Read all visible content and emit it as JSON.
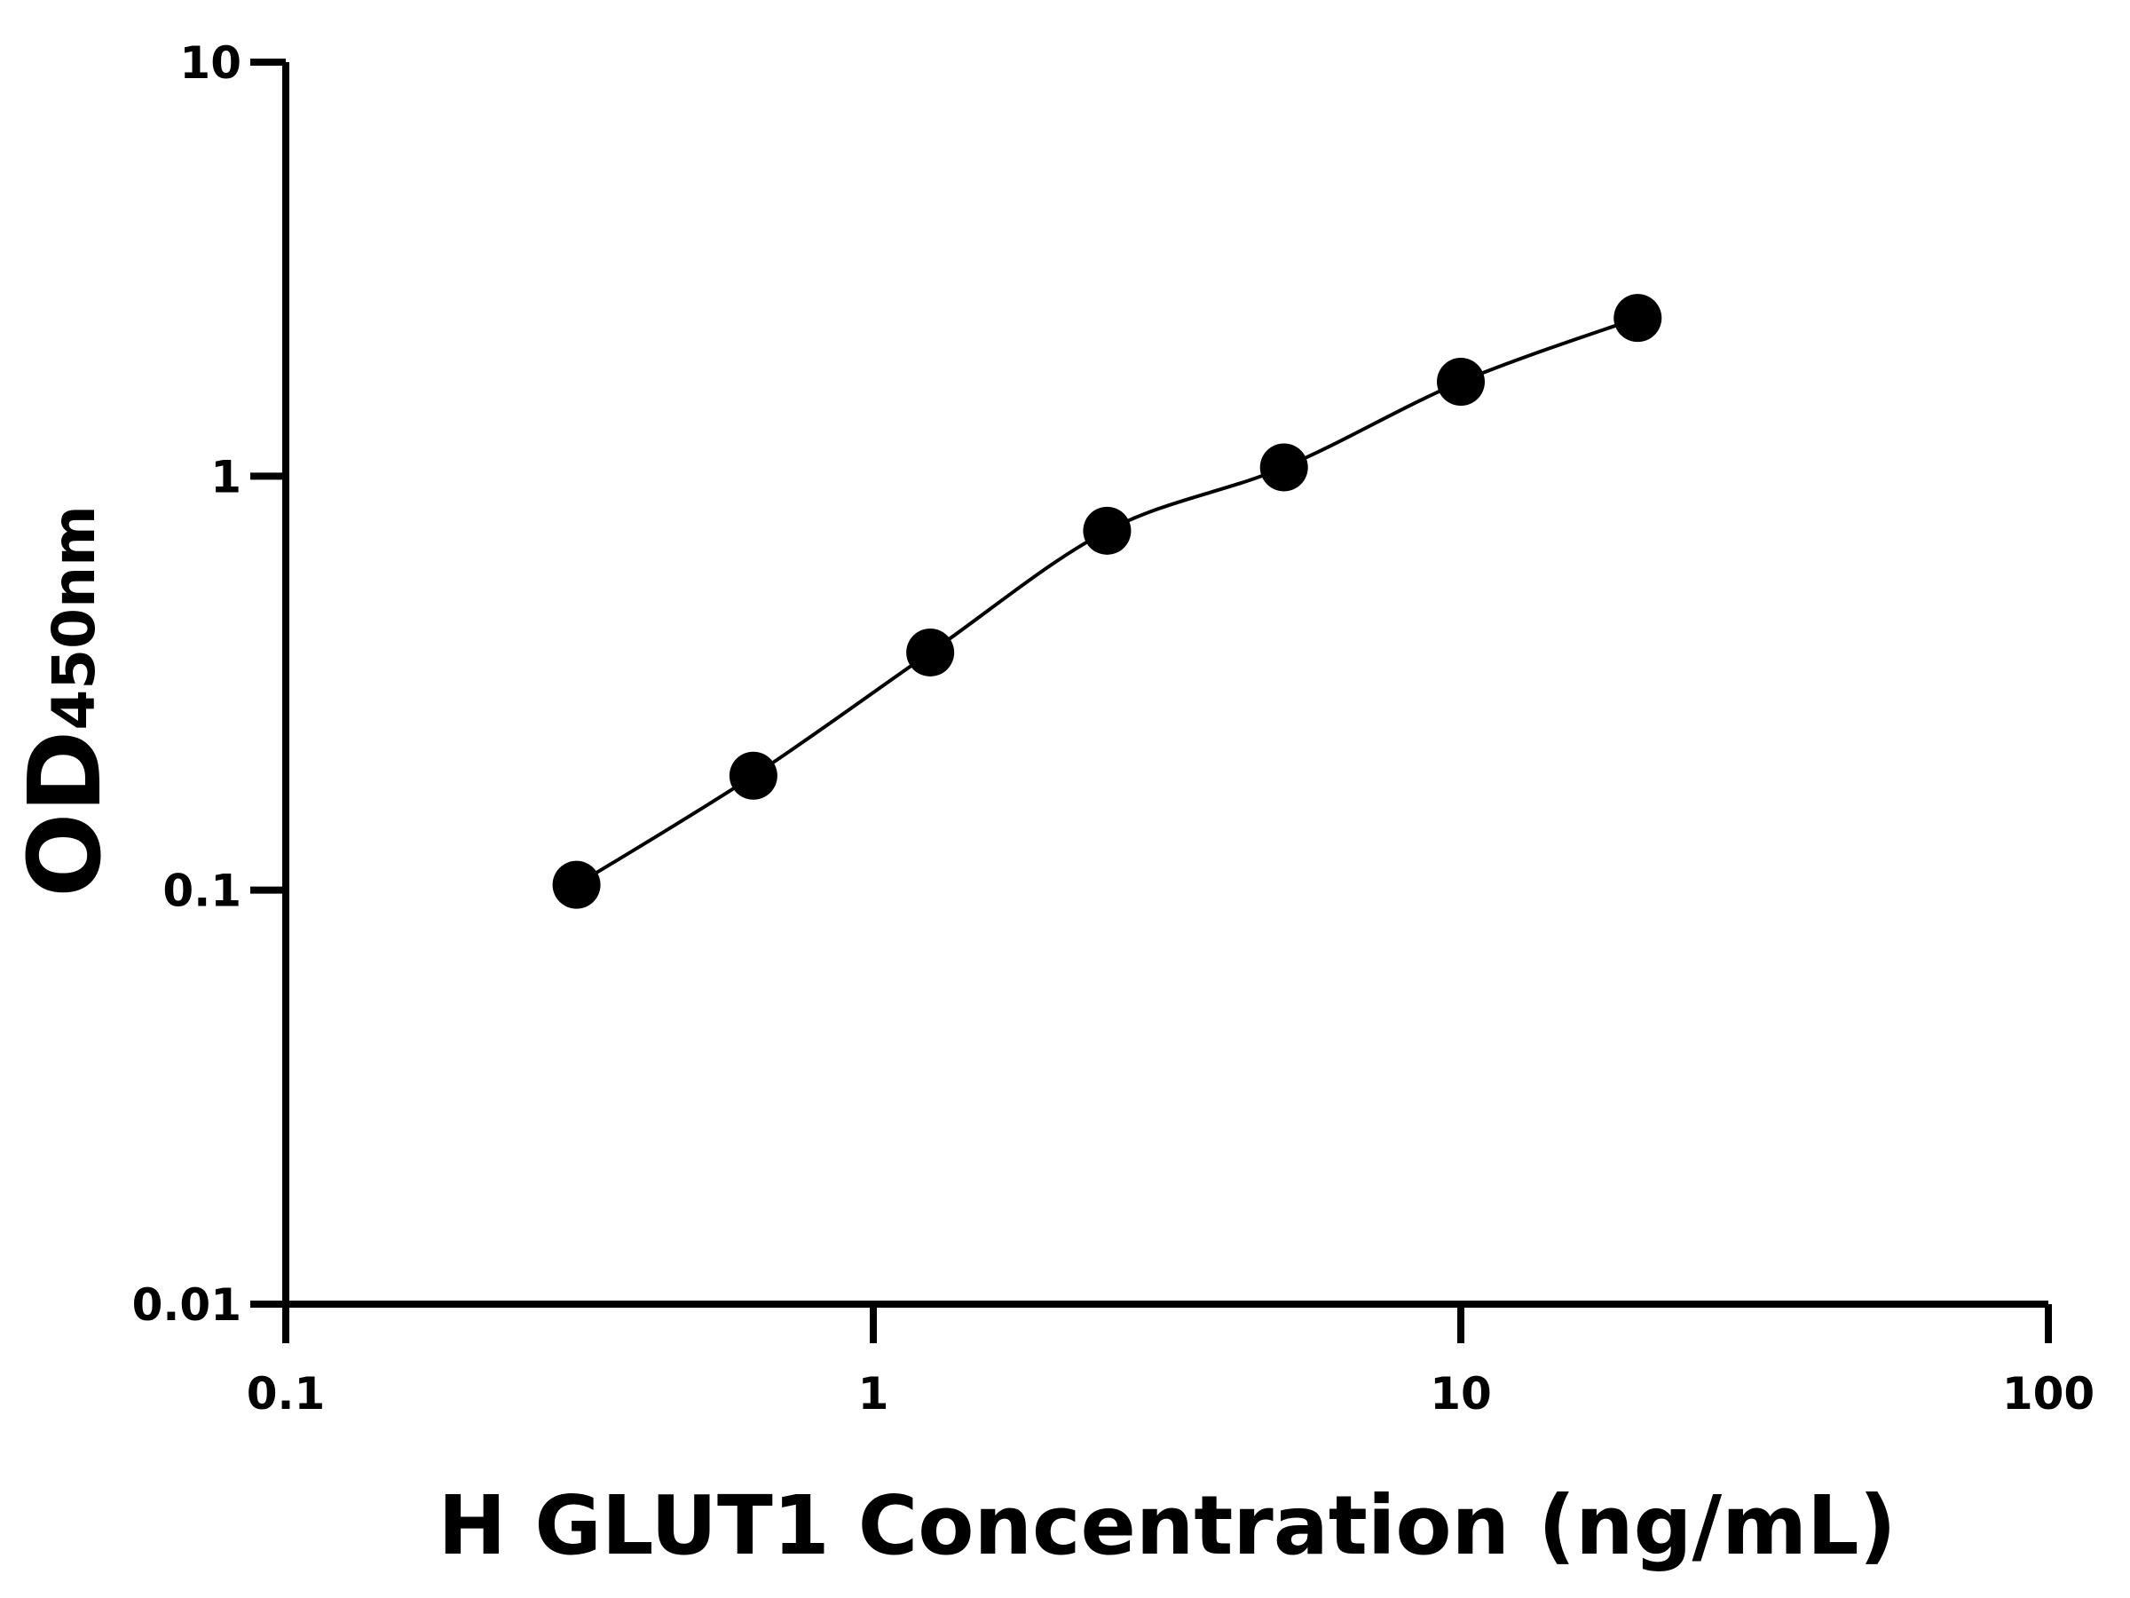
{
  "chart_data": {
    "type": "scatter",
    "xlabel": "H GLUT1 Concentration (ng/mL)",
    "ylabel": "OD",
    "ylabel_subscript": "450nm",
    "x": [
      0.3125,
      0.625,
      1.25,
      2.5,
      5,
      10,
      20
    ],
    "series": [
      {
        "color": "#000000",
        "values": [
          0.103,
          0.189,
          0.375,
          0.738,
          1.05,
          1.69,
          2.41
        ]
      }
    ],
    "xscale": "log",
    "yscale": "log",
    "xlim": [
      0.1,
      100
    ],
    "ylim": [
      0.01,
      10
    ],
    "xticks": [
      0.1,
      1,
      10,
      100
    ],
    "yticks": [
      0.01,
      0.1,
      1,
      10
    ],
    "fit_curve": true
  }
}
